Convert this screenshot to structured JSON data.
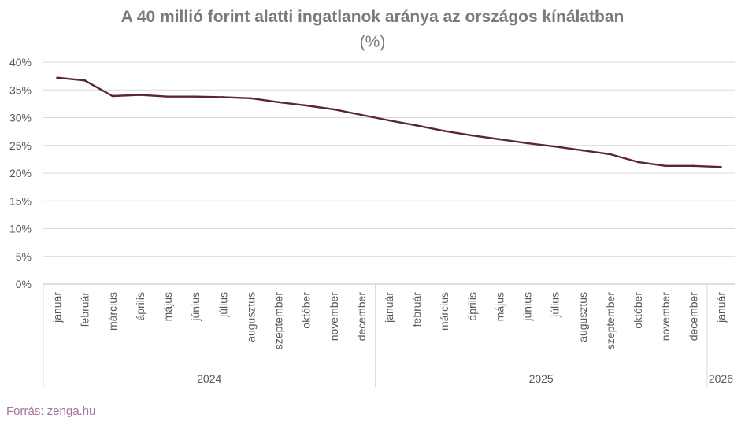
{
  "chart_data": {
    "type": "line",
    "title": "A 40 millió forint alatti ingatlanok aránya az országos kínálatban",
    "subtitle": "(%)",
    "ylim": [
      0,
      40
    ],
    "yticks": [
      "0%",
      "5%",
      "10%",
      "15%",
      "20%",
      "25%",
      "30%",
      "35%",
      "40%"
    ],
    "grid": true,
    "categories": [
      "január",
      "február",
      "március",
      "április",
      "május",
      "június",
      "július",
      "augusztus",
      "szeptember",
      "október",
      "november",
      "december",
      "január",
      "február",
      "március",
      "április",
      "május",
      "június",
      "július",
      "augusztus",
      "szeptember",
      "október",
      "november",
      "december",
      "január"
    ],
    "groups": [
      {
        "label": "2024",
        "count": 12
      },
      {
        "label": "2025",
        "count": 12
      },
      {
        "label": "2026",
        "count": 1
      }
    ],
    "series": [
      {
        "values": [
          37.2,
          36.7,
          33.9,
          34.1,
          33.8,
          33.8,
          33.7,
          33.5,
          32.8,
          32.2,
          31.5,
          30.5,
          29.5,
          28.6,
          27.6,
          26.8,
          26.1,
          25.4,
          24.8,
          24.1,
          23.4,
          22.0,
          21.3,
          21.3,
          21.1
        ],
        "color": "#5b2340"
      }
    ],
    "source": "Forrás: zenga.hu"
  }
}
